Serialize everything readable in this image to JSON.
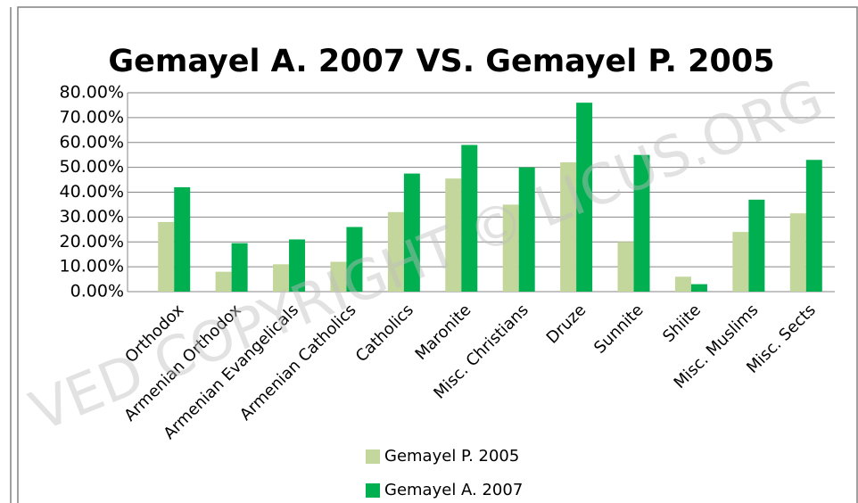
{
  "chart_data": {
    "type": "bar",
    "title": "Gemayel A. 2007 VS. Gemayel P. 2005",
    "watermark": "VED COPYRIGHT © LICUS.ORG",
    "categories": [
      "Orthodox",
      "Armenian Orthodox",
      "Armenian Evangelicals",
      "Armenian Catholics",
      "Catholics",
      "Maronite",
      "Misc. Christians",
      "Druze",
      "Sunnite",
      "Shiite",
      "Misc. Muslims",
      "Misc. Sects"
    ],
    "series": [
      {
        "name": "Gemayel P. 2005",
        "color": "#c3d69b",
        "values": [
          28,
          8,
          11,
          12,
          32,
          45.5,
          35,
          52,
          20,
          6,
          24,
          31.5
        ]
      },
      {
        "name": "Gemayel A. 2007",
        "color": "#00b050",
        "values": [
          42,
          19.5,
          21,
          26,
          47.5,
          59,
          50,
          76,
          55,
          3,
          37,
          53
        ]
      }
    ],
    "ylim": [
      0,
      80
    ],
    "yticks": [
      {
        "value": 0,
        "label": "0.00%"
      },
      {
        "value": 10,
        "label": "10.00%"
      },
      {
        "value": 20,
        "label": "20.00%"
      },
      {
        "value": 30,
        "label": "30.00%"
      },
      {
        "value": 40,
        "label": "40.00%"
      },
      {
        "value": 50,
        "label": "50.00%"
      },
      {
        "value": 60,
        "label": "60.00%"
      },
      {
        "value": 70,
        "label": "70.00%"
      },
      {
        "value": 80,
        "label": "80.00%"
      }
    ],
    "grid": true,
    "legend": "bottom"
  }
}
